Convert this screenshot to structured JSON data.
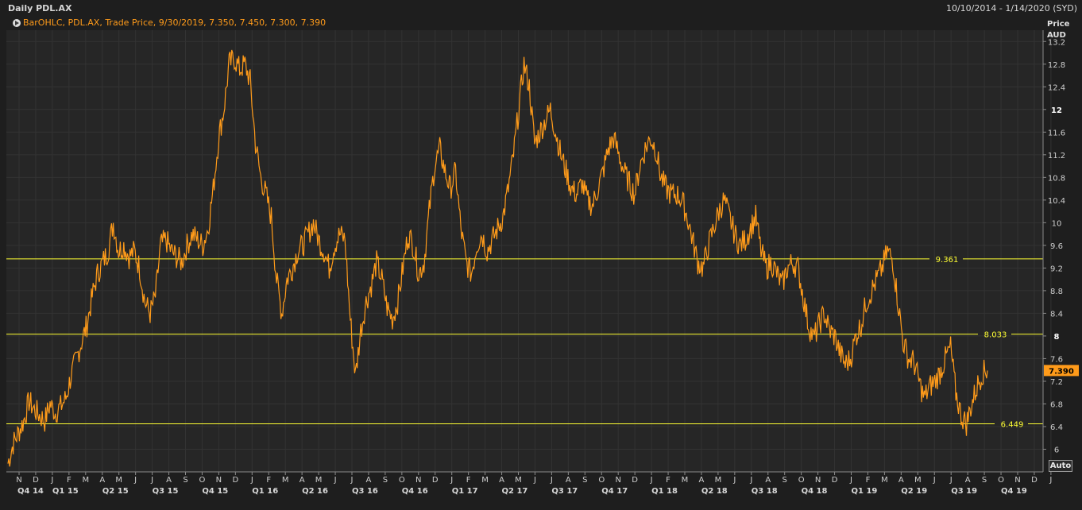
{
  "header": {
    "title": "Daily PDL.AX",
    "date_range": "10/10/2014 - 1/14/2020 (SYD)"
  },
  "legend": {
    "text": "BarOHLC, PDL.AX, Trade Price, 9/30/2019, 7.350, 7.450, 7.300, 7.390",
    "icon": "play-icon"
  },
  "auto_button": {
    "label": "Auto"
  },
  "colors": {
    "background": "#1e1e1e",
    "plot_background": "#262626",
    "grid": "#3a3a3a",
    "price_series": "#ff9b1a",
    "level_lines": "#ffff33",
    "last_price_badge": "#ff9b1a"
  },
  "chart_data": {
    "type": "line",
    "title": "Daily PDL.AX",
    "ylabel_lines": [
      "Price",
      "AUD"
    ],
    "ylim": [
      5.6,
      13.4
    ],
    "yticks": [
      "6",
      "6.4",
      "6.8",
      "7.2",
      "7.6",
      "8",
      "8.4",
      "8.8",
      "9.2",
      "9.6",
      "10",
      "10.4",
      "10.8",
      "11.2",
      "11.6",
      "12",
      "12.4",
      "12.8",
      "13.2"
    ],
    "bold_yticks": [
      "8",
      "12"
    ],
    "x_month_labels": [
      "N",
      "D",
      "J",
      "F",
      "M",
      "A",
      "M",
      "J",
      "J",
      "A",
      "S",
      "O",
      "N",
      "D",
      "J",
      "F",
      "M",
      "A",
      "M",
      "J",
      "J",
      "A",
      "S",
      "O",
      "N",
      "D",
      "J",
      "F",
      "M",
      "A",
      "M",
      "J",
      "J",
      "A",
      "S",
      "O",
      "N",
      "D",
      "J",
      "F",
      "M",
      "A",
      "M",
      "J",
      "J",
      "A",
      "S",
      "O",
      "N",
      "D",
      "J",
      "F",
      "M",
      "A",
      "M",
      "J",
      "J",
      "A",
      "S",
      "O",
      "N",
      "D",
      "J"
    ],
    "x_quarter_labels": [
      "Q4 14",
      "Q1 15",
      "Q2 15",
      "Q3 15",
      "Q4 15",
      "Q1 16",
      "Q2 16",
      "Q3 16",
      "Q4 16",
      "Q1 17",
      "Q2 17",
      "Q3 17",
      "Q4 17",
      "Q1 18",
      "Q2 18",
      "Q3 18",
      "Q4 18",
      "Q1 19",
      "Q2 19",
      "Q3 19",
      "Q4 19"
    ],
    "horizontal_levels": [
      {
        "value": 9.361,
        "label": "9.361"
      },
      {
        "value": 8.033,
        "label": "8.033"
      },
      {
        "value": 6.449,
        "label": "6.449"
      }
    ],
    "last_price": {
      "value": 7.39,
      "label": "7.390"
    },
    "series": [
      {
        "x_start": "2014-10-10",
        "x_end": "2019-09-30",
        "values": [
          5.75,
          6.1,
          6.3,
          6.5,
          6.85,
          6.7,
          6.6,
          6.5,
          6.8,
          6.65,
          6.75,
          6.9,
          7.3,
          7.6,
          7.9,
          8.2,
          8.7,
          9.1,
          9.3,
          9.5,
          10.0,
          9.5,
          9.6,
          9.4,
          9.5,
          9.2,
          8.6,
          8.4,
          8.7,
          9.6,
          9.7,
          9.5,
          9.4,
          9.3,
          9.6,
          9.8,
          9.7,
          9.6,
          9.9,
          10.6,
          11.5,
          12.0,
          12.8,
          12.9,
          12.7,
          12.8,
          12.5,
          11.4,
          10.8,
          10.5,
          10.1,
          9.0,
          8.4,
          9.0,
          9.2,
          9.5,
          9.6,
          9.8,
          10.0,
          9.7,
          9.5,
          9.2,
          9.6,
          9.8,
          9.7,
          8.3,
          7.3,
          8.1,
          8.6,
          8.9,
          9.3,
          9.0,
          8.5,
          8.3,
          8.6,
          9.2,
          9.8,
          9.6,
          9.1,
          9.3,
          10.2,
          11.0,
          11.3,
          10.9,
          10.6,
          10.9,
          9.9,
          9.3,
          9.1,
          9.6,
          9.8,
          9.5,
          9.7,
          9.9,
          10.1,
          10.6,
          11.2,
          12.0,
          12.8,
          12.4,
          11.4,
          11.6,
          11.8,
          12.0,
          11.6,
          11.2,
          10.9,
          10.6,
          10.5,
          10.7,
          10.4,
          10.3,
          10.6,
          10.9,
          11.3,
          11.5,
          11.2,
          10.9,
          10.7,
          10.5,
          11.0,
          11.3,
          11.5,
          11.3,
          10.8,
          10.6,
          10.5,
          10.5,
          10.4,
          10.1,
          9.7,
          9.3,
          9.2,
          9.6,
          9.9,
          10.2,
          10.4,
          10.1,
          9.8,
          9.6,
          9.7,
          9.9,
          10.1,
          9.5,
          9.2,
          9.3,
          9.1,
          8.9,
          9.2,
          9.3,
          9.2,
          8.7,
          8.2,
          7.95,
          8.2,
          8.4,
          8.1,
          8.0,
          7.7,
          7.5,
          7.6,
          8.0,
          8.2,
          8.6,
          8.8,
          9.0,
          9.2,
          9.5,
          9.35,
          8.6,
          7.9,
          7.6,
          7.55,
          7.2,
          6.9,
          7.1,
          7.2,
          7.35,
          7.6,
          7.8,
          7.0,
          6.6,
          6.45,
          6.8,
          7.1,
          7.35,
          7.39
        ]
      }
    ]
  }
}
